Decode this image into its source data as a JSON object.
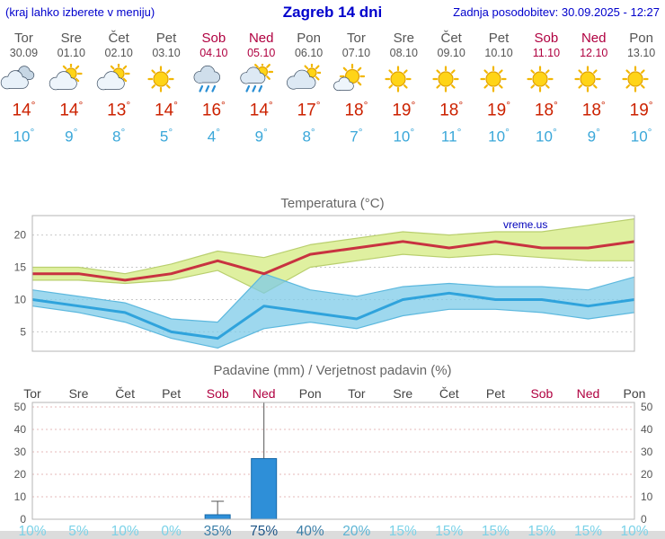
{
  "header": {
    "hint": "(kraj lahko izberete v meniju)",
    "title": "Zagreb 14 dni",
    "updated": "Zadnja posodobitev: 30.09.2025 - 12:27"
  },
  "watermark": "vreme.us",
  "colors": {
    "header_blue": "#0000cc",
    "weekend_red": "#b00040",
    "high_temp_red": "#cc2200",
    "low_temp_blue": "#3aa7d9",
    "temp_max_line": "#c83240",
    "temp_max_band": "#dff0a0",
    "temp_max_band_edge": "#b9cf6e",
    "temp_min_line": "#2fa3dc",
    "temp_min_band": "#7ecbe8",
    "temp_min_band_edge": "#5cb8de",
    "precip_bar_fill": "#2e8fd8",
    "precip_bar_stroke": "#1668a8",
    "grid_gray": "#c9c9c9",
    "grid_pink": "#e5b8b8",
    "frame_gray": "#b5b5b5",
    "prob_darkest": "#1d5486",
    "prob_dark": "#3c7fa8",
    "prob_mid": "#5cb4d4",
    "prob_light": "#7bd2e8",
    "scrollbar_gray": "#dcdcdc"
  },
  "forecast": {
    "days": [
      {
        "name": "Tor",
        "date": "30.09",
        "icon": "cloudy",
        "high": 14,
        "low": 10,
        "weekend": false
      },
      {
        "name": "Sre",
        "date": "01.10",
        "icon": "partly-cloudy",
        "high": 14,
        "low": 9,
        "weekend": false
      },
      {
        "name": "Čet",
        "date": "02.10",
        "icon": "partly-cloudy",
        "high": 13,
        "low": 8,
        "weekend": false
      },
      {
        "name": "Pet",
        "date": "03.10",
        "icon": "sunny",
        "high": 14,
        "low": 5,
        "weekend": false
      },
      {
        "name": "Sob",
        "date": "04.10",
        "icon": "rain",
        "high": 16,
        "low": 4,
        "weekend": true
      },
      {
        "name": "Ned",
        "date": "05.10",
        "icon": "sun-rain",
        "high": 14,
        "low": 9,
        "weekend": true
      },
      {
        "name": "Pon",
        "date": "06.10",
        "icon": "mostly-cloudy",
        "high": 17,
        "low": 8,
        "weekend": false
      },
      {
        "name": "Tor",
        "date": "07.10",
        "icon": "mostly-sunny",
        "high": 18,
        "low": 7,
        "weekend": false
      },
      {
        "name": "Sre",
        "date": "08.10",
        "icon": "sunny",
        "high": 19,
        "low": 10,
        "weekend": false
      },
      {
        "name": "Čet",
        "date": "09.10",
        "icon": "sunny",
        "high": 18,
        "low": 11,
        "weekend": false
      },
      {
        "name": "Pet",
        "date": "10.10",
        "icon": "sunny",
        "high": 19,
        "low": 10,
        "weekend": false
      },
      {
        "name": "Sob",
        "date": "11.10",
        "icon": "sunny",
        "high": 18,
        "low": 10,
        "weekend": true
      },
      {
        "name": "Ned",
        "date": "12.10",
        "icon": "sunny",
        "high": 18,
        "low": 9,
        "weekend": true
      },
      {
        "name": "Pon",
        "date": "13.10",
        "icon": "sunny",
        "high": 19,
        "low": 10,
        "weekend": false
      }
    ]
  },
  "chart_data": [
    {
      "type": "line",
      "title": "Temperatura (°C)",
      "x_days": [
        "Tor 30.09",
        "Sre 01.10",
        "Čet 02.10",
        "Pet 03.10",
        "Sob 04.10",
        "Ned 05.10",
        "Pon 06.10",
        "Tor 07.10",
        "Sre 08.10",
        "Čet 09.10",
        "Pet 10.10",
        "Sob 11.10",
        "Ned 12.10",
        "Pon 13.10"
      ],
      "series": [
        {
          "name": "temp_max",
          "values": [
            14,
            14,
            13,
            14,
            16,
            14,
            17,
            18,
            19,
            18,
            19,
            18,
            18,
            19
          ]
        },
        {
          "name": "temp_min",
          "values": [
            10,
            9,
            8,
            5,
            4,
            9,
            8,
            7,
            10,
            11,
            10,
            10,
            9,
            10
          ]
        },
        {
          "name": "temp_max_band_upper",
          "values": [
            15,
            15,
            14,
            15.5,
            17.5,
            16.5,
            18.5,
            19.5,
            20.5,
            20,
            20.5,
            20.5,
            21.5,
            22.5
          ]
        },
        {
          "name": "temp_max_band_lower",
          "values": [
            13,
            13,
            12.5,
            13,
            14.5,
            11,
            15,
            16,
            17,
            16.5,
            17,
            16.5,
            16,
            16
          ]
        },
        {
          "name": "temp_min_band_upper",
          "values": [
            11.5,
            10.5,
            9.5,
            7,
            6.5,
            14,
            11.5,
            10.5,
            12,
            12.5,
            12,
            12,
            11.5,
            13.5
          ]
        },
        {
          "name": "temp_min_band_lower",
          "values": [
            9,
            8,
            6.5,
            4,
            2.5,
            5.5,
            6.5,
            5.5,
            7.5,
            8.5,
            8.5,
            8,
            7,
            8
          ]
        }
      ],
      "ylim": [
        2,
        23
      ],
      "yticks": [
        5,
        10,
        15,
        20
      ],
      "grid": "dotted-horizontal",
      "legend": "none"
    },
    {
      "type": "bar",
      "title": "Padavine (mm) / Verjetnost padavin (%)",
      "categories": [
        "Tor",
        "Sre",
        "Čet",
        "Pet",
        "Sob",
        "Ned",
        "Pon",
        "Tor",
        "Sre",
        "Čet",
        "Pet",
        "Sob",
        "Ned",
        "Pon"
      ],
      "weekend_indices": [
        4,
        5,
        11,
        12
      ],
      "precip_mm": [
        0,
        0,
        0,
        0,
        2,
        27,
        0,
        0,
        0,
        0,
        0,
        0,
        0,
        0
      ],
      "whisker_min_mm": [
        0,
        0,
        0,
        0,
        0,
        2,
        0,
        0,
        0,
        0,
        0,
        0,
        0,
        0
      ],
      "whisker_max_mm": [
        0,
        0,
        0,
        0,
        8,
        52,
        0,
        0,
        0,
        0,
        0,
        0,
        0,
        0
      ],
      "probability_pct": [
        10,
        5,
        10,
        0,
        35,
        75,
        40,
        20,
        15,
        15,
        15,
        15,
        15,
        10
      ],
      "ylim": [
        0,
        52
      ],
      "yticks": [
        0,
        10,
        20,
        30,
        40,
        50
      ],
      "grid": "dotted-horizontal",
      "legend": "none"
    }
  ]
}
